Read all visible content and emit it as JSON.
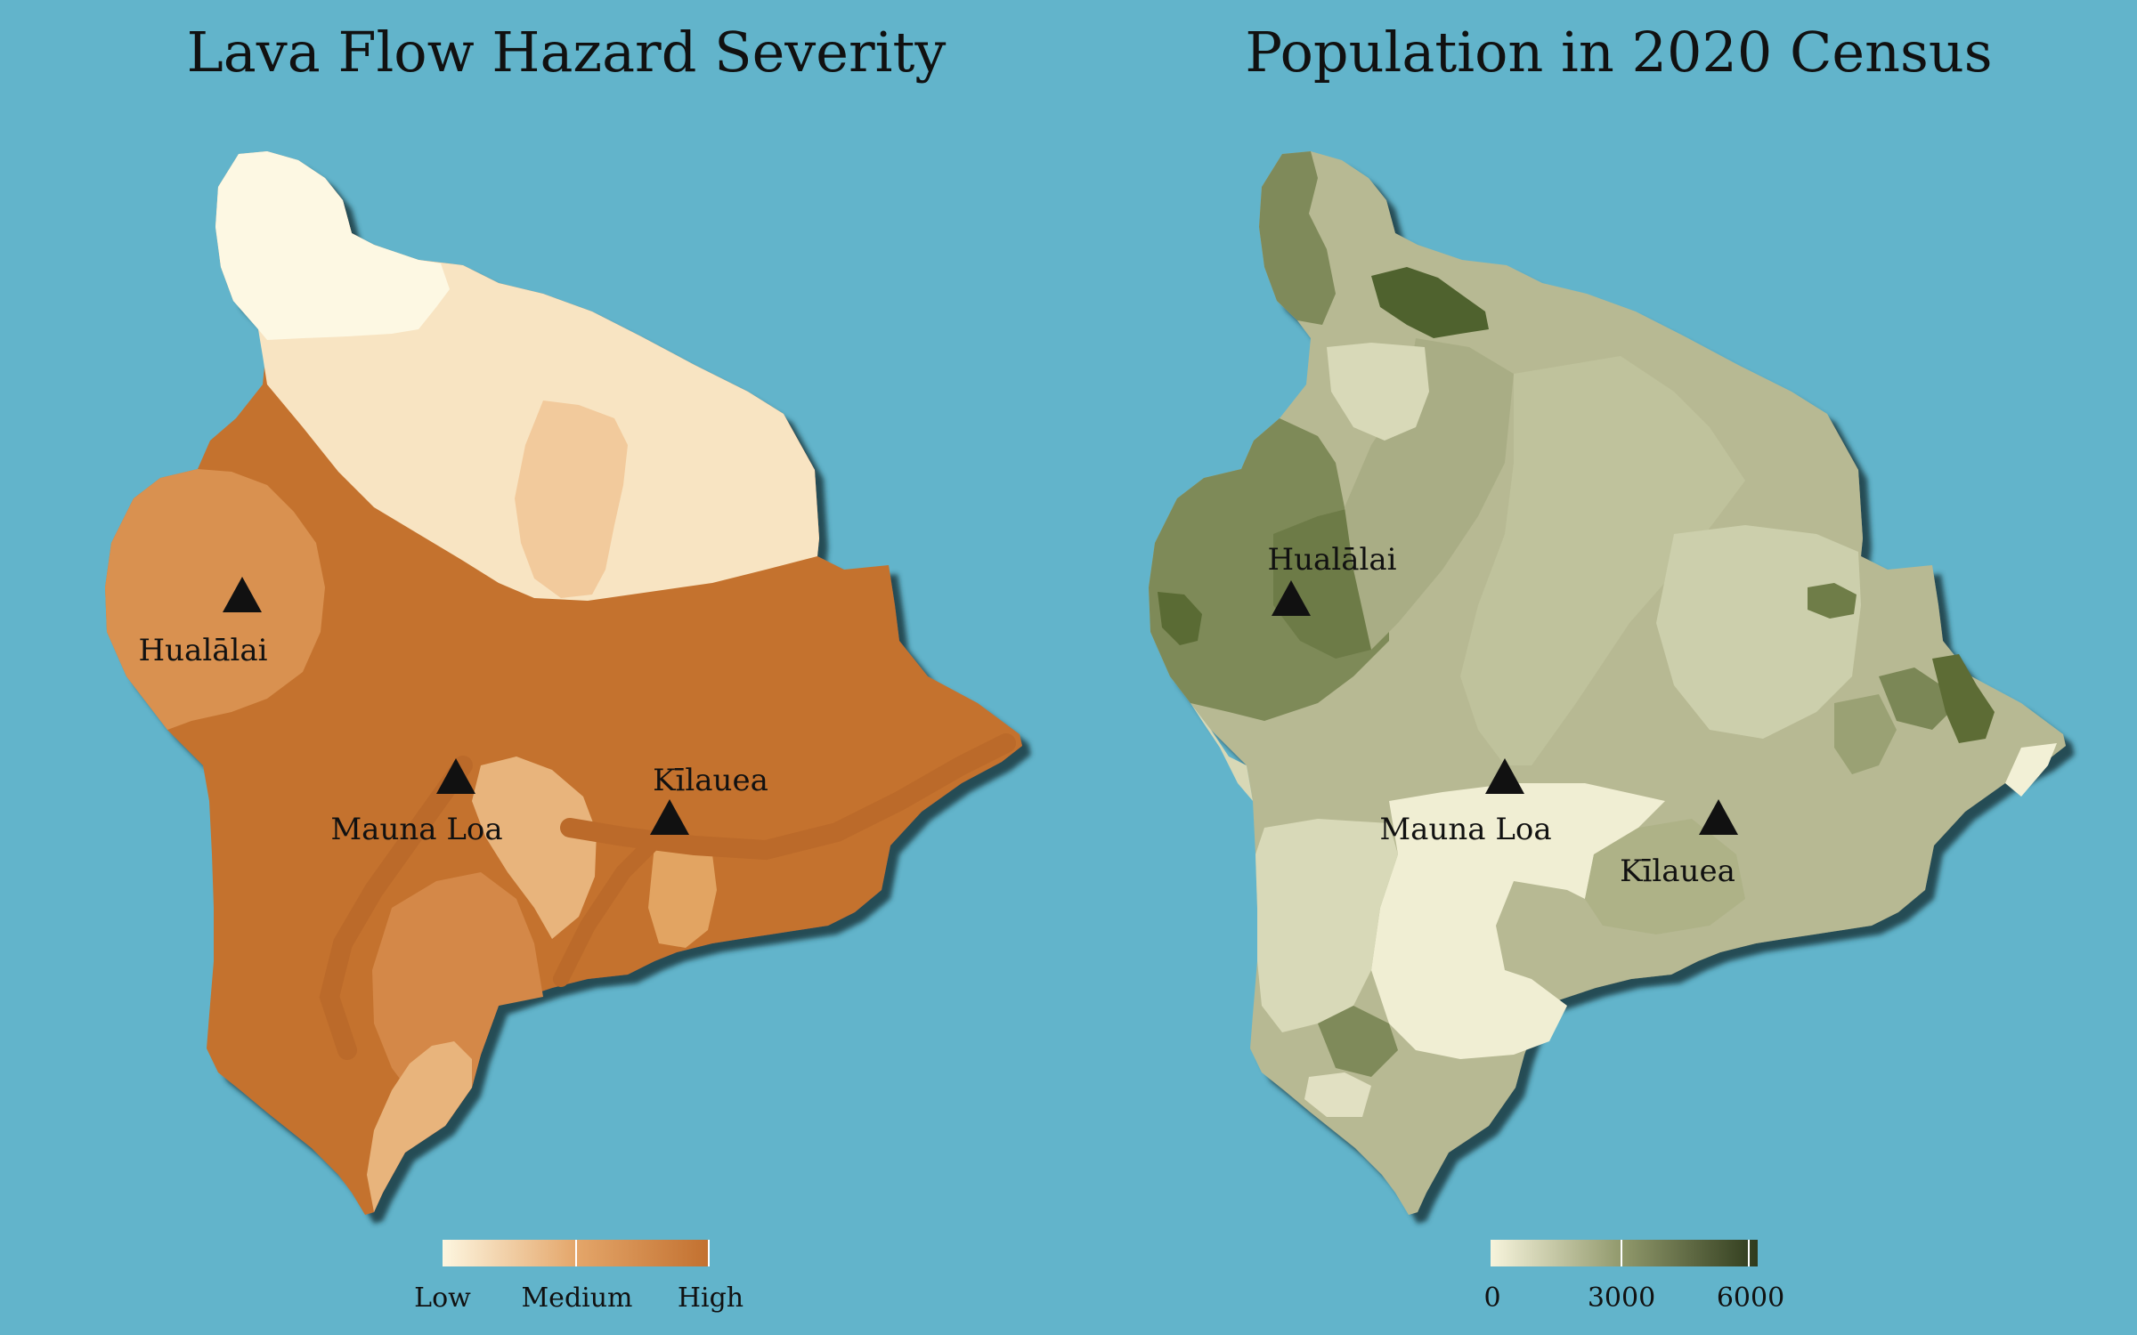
{
  "maps": {
    "hazard": {
      "title": "Lava Flow Hazard Severity",
      "volcanoes": {
        "hualalai": "Hualālai",
        "mauna_loa": "Mauna Loa",
        "kilauea": "Kīlauea"
      },
      "legend": {
        "labels": [
          "Low",
          "Medium",
          "High"
        ],
        "colors": [
          "#fdf6e0",
          "#e4a66a",
          "#c2702f"
        ]
      }
    },
    "population": {
      "title": "Population in 2020 Census",
      "volcanoes": {
        "hualalai": "Hualālai",
        "mauna_loa": "Mauna Loa",
        "kilauea": "Kīlauea"
      },
      "legend": {
        "labels": [
          "0",
          "3000",
          "6000"
        ],
        "colors": [
          "#f7f4dc",
          "#8f976a",
          "#2f3b1c"
        ]
      }
    }
  },
  "colors": {
    "ocean": "#62b4cb",
    "hazard_low": "#fdf6e0",
    "hazard_medium": "#e9b47a",
    "hazard_high": "#c4722f",
    "pop_low": "#eeecd2",
    "pop_high": "#4a5a2a"
  },
  "icons": {
    "volcano": "triangle-icon"
  }
}
